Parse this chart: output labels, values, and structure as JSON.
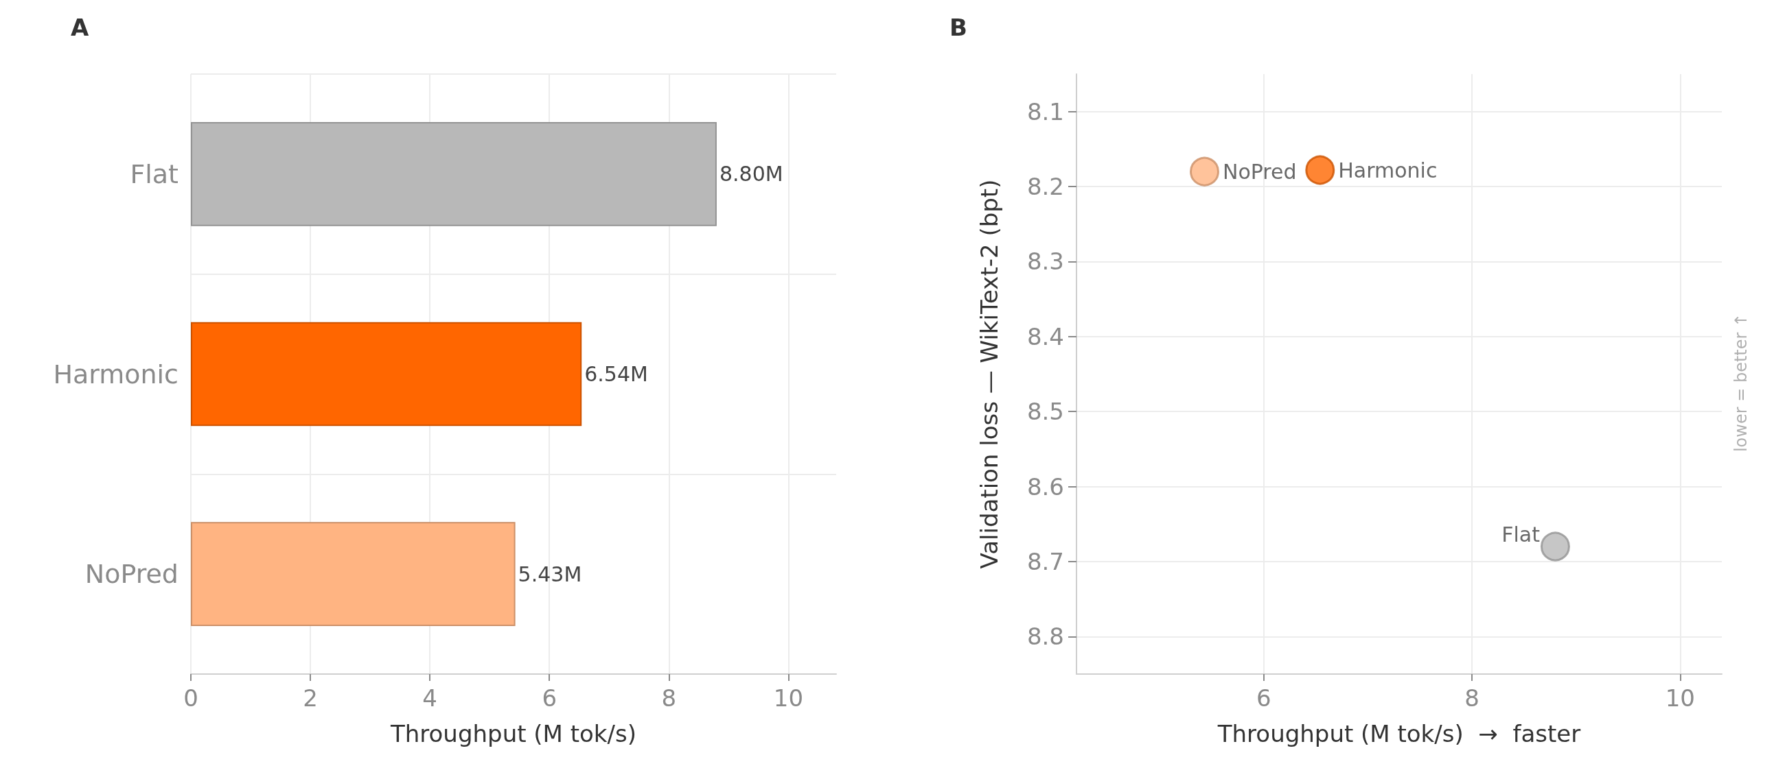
{
  "chart_data": [
    {
      "type": "bar",
      "title": "A",
      "orientation": "horizontal",
      "categories": [
        "Flat",
        "Harmonic",
        "NoPred"
      ],
      "values": [
        8.8,
        6.54,
        5.43
      ],
      "colors": [
        "#b8b8b8",
        "#ff6600",
        "#ffb482"
      ],
      "value_labels": [
        "8.80M",
        "6.54M",
        "5.43M"
      ],
      "xlabel": "Throughput (M tok/s)",
      "xlim": [
        0,
        10.8
      ],
      "xticks": [
        0,
        2,
        4,
        6,
        8,
        10
      ],
      "grid": true
    },
    {
      "type": "scatter",
      "title": "B",
      "xlabel": "Throughput (M tok/s)  →  faster",
      "ylabel": "Validation loss — WikiText-2 (bpt)",
      "xlim": [
        4.2,
        10.4
      ],
      "xticks": [
        6,
        8,
        10
      ],
      "ylim": [
        8.85,
        8.05
      ],
      "yticks": [
        8.1,
        8.2,
        8.3,
        8.4,
        8.5,
        8.6,
        8.7,
        8.8
      ],
      "grid": true,
      "marker": "circle",
      "series": [
        {
          "name": "NoPred",
          "color": "#ffb482",
          "x": [
            5.43
          ],
          "values": [
            8.18
          ]
        },
        {
          "name": "Harmonic",
          "color": "#ff6600",
          "x": [
            6.54
          ],
          "values": [
            8.178
          ]
        },
        {
          "name": "Flat",
          "color": "#b8b8b8",
          "x": [
            8.8
          ],
          "values": [
            8.68
          ]
        }
      ],
      "annotations": [
        "lower = better ↑"
      ]
    }
  ]
}
